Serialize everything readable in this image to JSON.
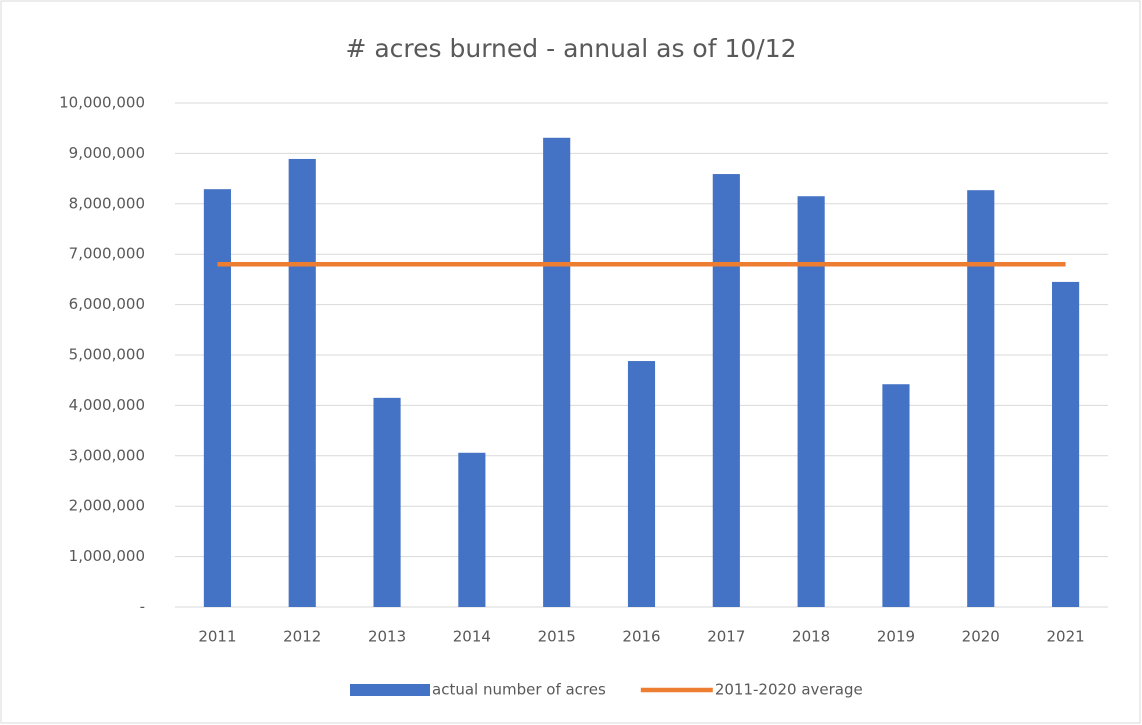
{
  "chart_data": {
    "type": "bar",
    "title": "# acres burned - annual as of 10/12",
    "categories": [
      "2011",
      "2012",
      "2013",
      "2014",
      "2015",
      "2016",
      "2017",
      "2018",
      "2019",
      "2020",
      "2021"
    ],
    "series": [
      {
        "name": "actual number of acres",
        "type": "bar",
        "color": "#4472c4",
        "values": [
          8290000,
          8890000,
          4150000,
          3060000,
          9310000,
          4880000,
          8590000,
          8150000,
          4420000,
          8270000,
          6450000
        ]
      },
      {
        "name": "2011-2020 average",
        "type": "line",
        "color": "#ed7d31",
        "values": [
          6800000,
          6800000,
          6800000,
          6800000,
          6800000,
          6800000,
          6800000,
          6800000,
          6800000,
          6800000,
          6800000
        ]
      }
    ],
    "ylim": [
      0,
      10000000
    ],
    "yticks": [
      {
        "value": 0,
        "label": "-"
      },
      {
        "value": 1000000,
        "label": "1,000,000"
      },
      {
        "value": 2000000,
        "label": "2,000,000"
      },
      {
        "value": 3000000,
        "label": "3,000,000"
      },
      {
        "value": 4000000,
        "label": "4,000,000"
      },
      {
        "value": 5000000,
        "label": "5,000,000"
      },
      {
        "value": 6000000,
        "label": "6,000,000"
      },
      {
        "value": 7000000,
        "label": "7,000,000"
      },
      {
        "value": 8000000,
        "label": "8,000,000"
      },
      {
        "value": 9000000,
        "label": "9,000,000"
      },
      {
        "value": 10000000,
        "label": "10,000,000"
      }
    ],
    "grid": true,
    "legend": "bottom"
  }
}
